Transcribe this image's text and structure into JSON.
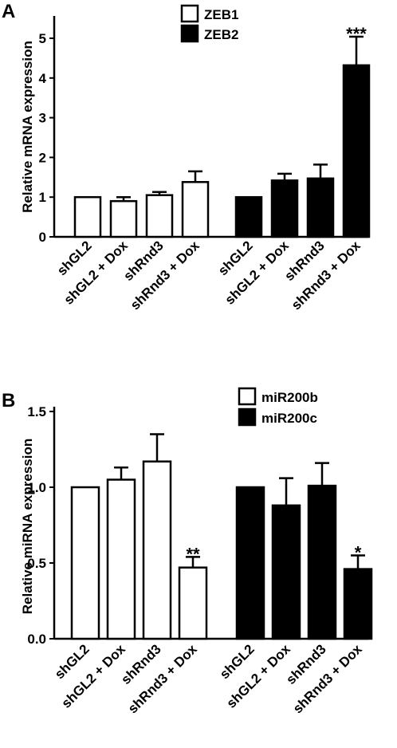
{
  "chart_data": [
    {
      "panel_label": "A",
      "type": "bar",
      "ylabel": "Relative mRNA expression",
      "ylim": [
        0,
        5.5
      ],
      "yticks": [
        "0",
        "1",
        "2",
        "3",
        "4",
        "5"
      ],
      "categories": [
        "shGL2",
        "shGL2 + Dox",
        "shRnd3",
        "shRnd3 + Dox"
      ],
      "legend_position": "top-center",
      "series": [
        {
          "name": "ZEB1",
          "fill": "#ffffff",
          "values": [
            1.0,
            0.9,
            1.05,
            1.38
          ],
          "errors": [
            0.0,
            0.1,
            0.08,
            0.27
          ],
          "significance": [
            "",
            "",
            "",
            ""
          ]
        },
        {
          "name": "ZEB2",
          "fill": "#000000",
          "values": [
            1.0,
            1.42,
            1.47,
            4.32
          ],
          "errors": [
            0.0,
            0.17,
            0.35,
            0.72
          ],
          "significance": [
            "",
            "",
            "",
            "***"
          ]
        }
      ]
    },
    {
      "panel_label": "B",
      "type": "bar",
      "ylabel": "Relative miRNA expression",
      "ylim": [
        0,
        1.5
      ],
      "yticks": [
        "0.0",
        "0.5",
        "1.0",
        "1.5"
      ],
      "categories": [
        "shGL2",
        "shGL2 + Dox",
        "shRnd3",
        "shRnd3 + Dox"
      ],
      "legend_position": "top-right",
      "series": [
        {
          "name": "miR200b",
          "fill": "#ffffff",
          "values": [
            1.0,
            1.05,
            1.17,
            0.47
          ],
          "errors": [
            0.0,
            0.08,
            0.18,
            0.07
          ],
          "significance": [
            "",
            "",
            "",
            "**"
          ]
        },
        {
          "name": "miR200c",
          "fill": "#000000",
          "values": [
            1.0,
            0.88,
            1.01,
            0.46
          ],
          "errors": [
            0.0,
            0.18,
            0.15,
            0.09
          ],
          "significance": [
            "",
            "",
            "",
            "*"
          ]
        }
      ]
    }
  ]
}
